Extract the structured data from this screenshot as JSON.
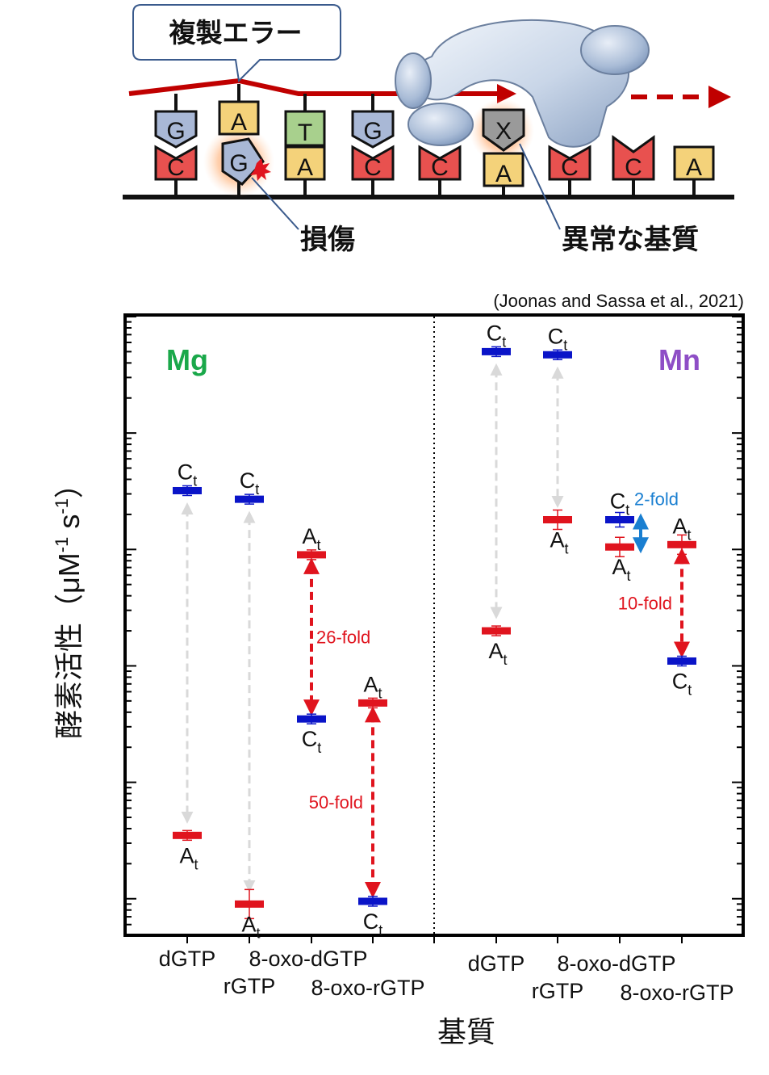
{
  "diagram": {
    "callout_label": "複製エラー",
    "damage_label": "損傷",
    "abnormal_substrate_label": "異常な基質",
    "nucleotides": [
      {
        "top": "G",
        "bottom": "C"
      },
      {
        "top": "A",
        "bottom": "G"
      },
      {
        "top": "T",
        "bottom": "A"
      },
      {
        "top": "G",
        "bottom": "C"
      },
      {
        "top": "",
        "bottom": "C"
      },
      {
        "top": "X",
        "bottom": "A"
      },
      {
        "top": "",
        "bottom": "C"
      },
      {
        "top": "",
        "bottom": "C"
      },
      {
        "top": "",
        "bottom": "A"
      }
    ],
    "colors": {
      "template_strand": "#1a1a1a",
      "new_strand": "#c00000",
      "C": "#e8514f",
      "G": "#a9b8d6",
      "A": "#f4d27a",
      "T": "#a8d08d",
      "X": "#9a9a9a"
    }
  },
  "citation": "(Joonas and Sassa et al., 2021)",
  "chart_data": {
    "type": "scatter",
    "ylabel_main": "酵素活性",
    "ylabel_unit": "（μM",
    "ylabel_sup1": "-1",
    "ylabel_unit2": " s",
    "ylabel_sup2": "-1",
    "ylabel_close": "）",
    "xlabel": "基質",
    "y_scale": "log",
    "panels": [
      {
        "metal": "Mg",
        "metal_color": "#1aa84a",
        "categories": [
          "dGTP",
          "rGTP",
          "8-oxo-dGTP",
          "8-oxo-rGTP"
        ],
        "points": [
          {
            "cat": 0,
            "Ct": 3.2,
            "At": 0.0035,
            "fold": ""
          },
          {
            "cat": 1,
            "Ct": 2.7,
            "At": 0.0009,
            "fold": ""
          },
          {
            "cat": 2,
            "At": 0.9,
            "Ct": 0.035,
            "fold": "26-fold"
          },
          {
            "cat": 3,
            "At": 0.048,
            "Ct": 0.00095,
            "fold": "50-fold"
          }
        ]
      },
      {
        "metal": "Mn",
        "metal_color": "#8e4ec6",
        "categories": [
          "dGTP",
          "rGTP",
          "8-oxo-dGTP",
          "8-oxo-rGTP"
        ],
        "points": [
          {
            "cat": 0,
            "Ct": 50,
            "At": 0.2,
            "fold": ""
          },
          {
            "cat": 1,
            "Ct": 47,
            "At": 1.8,
            "fold": ""
          },
          {
            "cat": 2,
            "Ct": 1.8,
            "At": 1.05,
            "fold": "2-fold"
          },
          {
            "cat": 3,
            "At": 1.1,
            "Ct": 0.11,
            "fold": "10-fold"
          }
        ]
      }
    ],
    "series": [
      {
        "name": "Ct",
        "color": "#0a14c8"
      },
      {
        "name": "At",
        "color": "#e0141e"
      }
    ],
    "point_label_main": {
      "Ct": "C",
      "At": "A"
    },
    "point_label_sub": "t"
  }
}
